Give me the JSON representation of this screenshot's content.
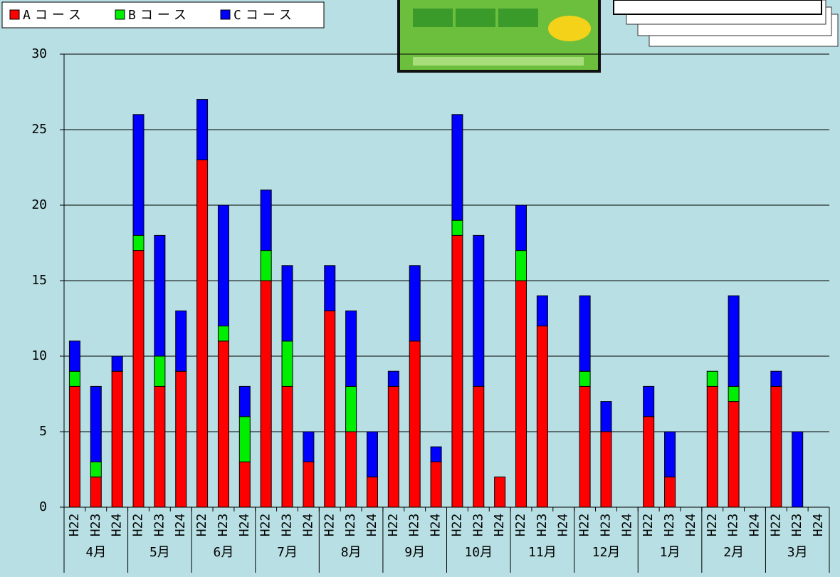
{
  "chart_data": {
    "type": "stacked_bar",
    "groups": [
      "4月",
      "5月",
      "6月",
      "7月",
      "8月",
      "9月",
      "10月",
      "11月",
      "12月",
      "1月",
      "2月",
      "3月"
    ],
    "categories": [
      "H22",
      "H23",
      "H24",
      "H22",
      "H23",
      "H24",
      "H22",
      "H23",
      "H24",
      "H22",
      "H23",
      "H24",
      "H22",
      "H23",
      "H24",
      "H22",
      "H23",
      "H24",
      "H22",
      "H23",
      "H24",
      "H22",
      "H23",
      "H24",
      "H22",
      "H23",
      "H24",
      "H22",
      "H23",
      "H24",
      "H22",
      "H23",
      "H24",
      "H22",
      "H23",
      "H24"
    ],
    "series": [
      {
        "name": "Aコース",
        "color": "#ff0000",
        "values": [
          8,
          2,
          9,
          17,
          8,
          9,
          23,
          11,
          3,
          15,
          8,
          3,
          13,
          5,
          2,
          8,
          11,
          3,
          18,
          8,
          2,
          15,
          12,
          0,
          8,
          5,
          0,
          6,
          2,
          0,
          8,
          7,
          0,
          8,
          0,
          0
        ]
      },
      {
        "name": "Bコース",
        "color": "#00ee00",
        "values": [
          1,
          1,
          0,
          1,
          2,
          0,
          0,
          1,
          3,
          2,
          3,
          0,
          0,
          3,
          0,
          0,
          0,
          0,
          1,
          0,
          0,
          2,
          0,
          0,
          1,
          0,
          0,
          0,
          0,
          0,
          1,
          1,
          0,
          0,
          0,
          0
        ]
      },
      {
        "name": "Cコース",
        "color": "#0000ff",
        "values": [
          2,
          5,
          1,
          8,
          8,
          4,
          4,
          8,
          2,
          4,
          5,
          2,
          3,
          5,
          3,
          1,
          5,
          1,
          7,
          10,
          0,
          3,
          2,
          0,
          5,
          2,
          0,
          2,
          3,
          0,
          0,
          6,
          0,
          1,
          5,
          0
        ]
      }
    ],
    "ylim": [
      0,
      30
    ],
    "yticks": [
      0,
      5,
      10,
      15,
      20,
      25,
      30
    ],
    "grid": true,
    "legend": "top-left"
  }
}
